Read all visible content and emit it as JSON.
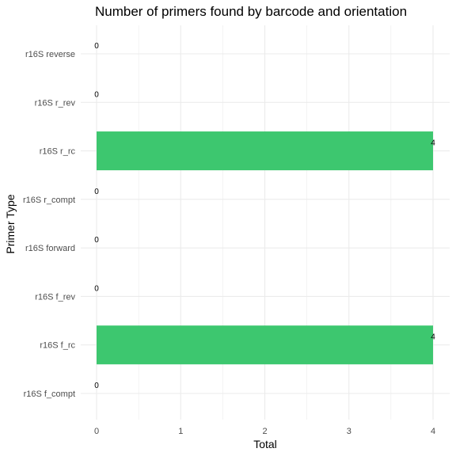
{
  "chart_data": {
    "type": "bar",
    "orientation": "horizontal",
    "title": "Number of primers found by barcode and orientation",
    "xlabel": "Total",
    "ylabel": "Primer Type",
    "categories": [
      "r16S f_compt",
      "r16S f_rc",
      "r16S f_rev",
      "r16S forward",
      "r16S r_compt",
      "r16S r_rc",
      "r16S r_rev",
      "r16S reverse"
    ],
    "values": [
      0,
      4,
      0,
      0,
      0,
      4,
      0,
      0
    ],
    "xlim": [
      0,
      4
    ],
    "xticks": [
      0,
      1,
      2,
      3,
      4
    ],
    "grid": true,
    "legend": "none",
    "bar_color": "#3DC76F"
  }
}
